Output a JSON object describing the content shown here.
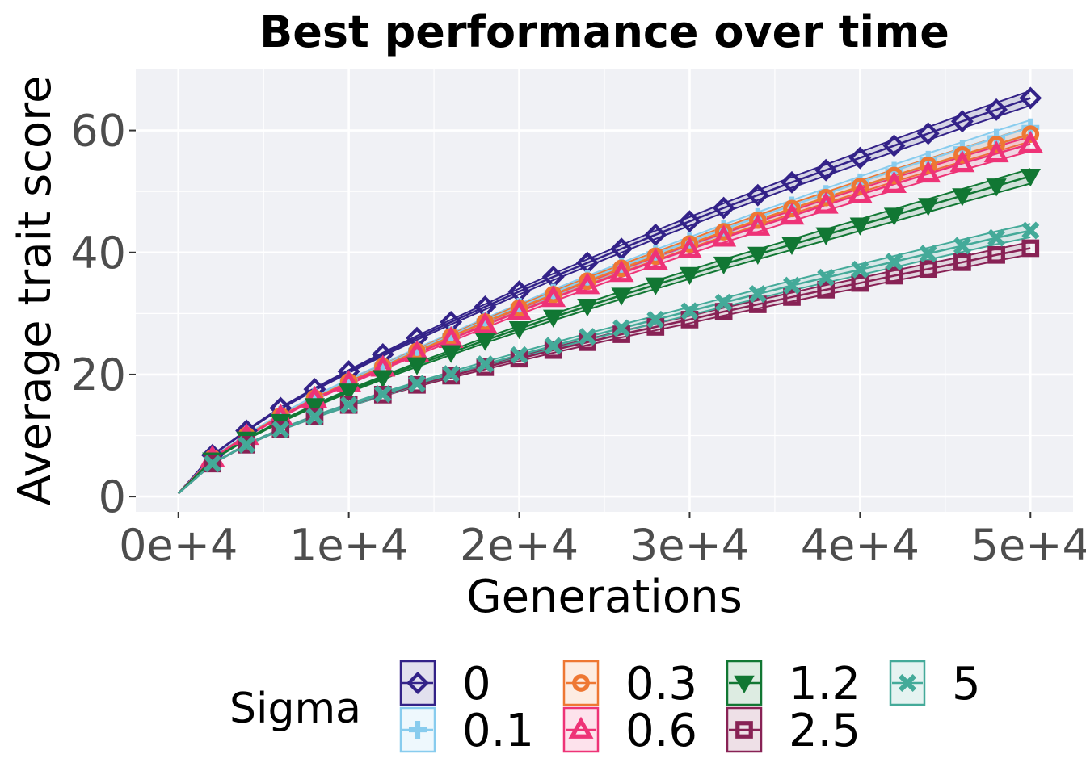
{
  "chart_data": {
    "type": "line",
    "title": "Best performance over time",
    "xlabel": "Generations",
    "ylabel": "Average trait score",
    "xlim": [
      -2500,
      52500
    ],
    "ylim": [
      -2.5,
      70
    ],
    "x_ticks": [
      0,
      10000,
      20000,
      30000,
      40000,
      50000
    ],
    "x_tick_labels": [
      "0e+4",
      "1e+4",
      "2e+4",
      "3e+4",
      "4e+4",
      "5e+4"
    ],
    "y_ticks": [
      0,
      20,
      40,
      60
    ],
    "y_tick_labels": [
      "0",
      "20",
      "40",
      "60"
    ],
    "grid": true,
    "background": "#f0f1f5",
    "legend": {
      "title": "Sigma",
      "placement": "bottom"
    },
    "x": [
      0,
      2000,
      4000,
      6000,
      8000,
      10000,
      12000,
      14000,
      16000,
      18000,
      20000,
      22000,
      24000,
      26000,
      28000,
      30000,
      32000,
      34000,
      36000,
      38000,
      40000,
      42000,
      44000,
      46000,
      48000,
      50000
    ],
    "series": [
      {
        "name": "0",
        "color": "#332288",
        "marker": "diamond",
        "values": [
          0.5,
          6.8,
          10.8,
          14.5,
          17.6,
          20.5,
          23.3,
          26.0,
          28.6,
          31.1,
          33.6,
          36.0,
          38.3,
          40.6,
          42.9,
          45.1,
          47.3,
          49.4,
          51.5,
          53.5,
          55.5,
          57.5,
          59.5,
          61.5,
          63.4,
          65.3
        ],
        "band": 1.2
      },
      {
        "name": "0.1",
        "color": "#88ccee",
        "marker": "plus",
        "values": [
          0.5,
          6.4,
          10.1,
          13.4,
          16.3,
          19.0,
          21.5,
          24.0,
          26.4,
          28.8,
          31.1,
          33.4,
          35.6,
          37.7,
          39.8,
          41.8,
          43.8,
          45.8,
          47.7,
          49.6,
          51.5,
          53.4,
          55.2,
          57.0,
          58.8,
          60.5
        ],
        "band": 1.2
      },
      {
        "name": "0.3",
        "color": "#ee7733",
        "marker": "circle",
        "values": [
          0.5,
          6.3,
          10.0,
          13.2,
          16.1,
          18.8,
          21.3,
          23.8,
          26.2,
          28.6,
          30.9,
          33.1,
          35.3,
          37.4,
          39.4,
          41.4,
          43.4,
          45.3,
          47.2,
          49.0,
          50.8,
          52.6,
          54.3,
          56.0,
          57.7,
          59.4
        ],
        "band": 1.2
      },
      {
        "name": "0.6",
        "color": "#ee3377",
        "marker": "triangle",
        "values": [
          0.5,
          6.3,
          9.9,
          13.1,
          16.0,
          18.6,
          21.1,
          23.5,
          25.8,
          28.1,
          30.3,
          32.5,
          34.6,
          36.6,
          38.6,
          40.5,
          42.4,
          44.2,
          46.0,
          47.8,
          49.5,
          51.2,
          52.9,
          54.6,
          56.2,
          57.8
        ],
        "band": 1.2
      },
      {
        "name": "1.2",
        "color": "#117733",
        "marker": "triangle-down",
        "values": [
          0.5,
          6.0,
          9.4,
          12.3,
          14.9,
          17.3,
          19.5,
          21.6,
          23.6,
          25.6,
          27.5,
          29.4,
          31.2,
          33.0,
          34.7,
          36.4,
          38.1,
          39.7,
          41.3,
          42.9,
          44.5,
          46.1,
          47.7,
          49.3,
          50.9,
          52.5
        ],
        "band": 1.2
      },
      {
        "name": "2.5",
        "color": "#882255",
        "marker": "square",
        "values": [
          0.5,
          5.4,
          8.5,
          11.0,
          13.1,
          15.0,
          16.7,
          18.3,
          19.8,
          21.2,
          22.6,
          24.0,
          25.3,
          26.6,
          27.8,
          29.0,
          30.3,
          31.5,
          32.7,
          33.9,
          35.0,
          36.2,
          37.3,
          38.4,
          39.6,
          40.7
        ],
        "band": 1.0
      },
      {
        "name": "5",
        "color": "#44aa99",
        "marker": "x",
        "values": [
          0.5,
          5.4,
          8.5,
          11.0,
          13.1,
          15.0,
          16.8,
          18.5,
          20.1,
          21.7,
          23.2,
          24.7,
          26.2,
          27.6,
          29.0,
          30.4,
          31.8,
          33.2,
          34.6,
          35.9,
          37.2,
          38.5,
          39.8,
          41.1,
          42.4,
          43.6
        ],
        "band": 1.1
      }
    ]
  }
}
